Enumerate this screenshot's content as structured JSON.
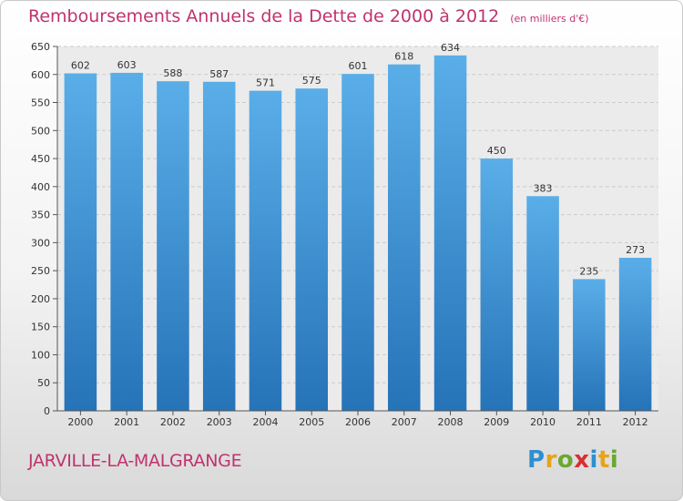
{
  "title": "Remboursements Annuels de la Dette de 2000 à 2012",
  "unit_note": "(en milliers d'€)",
  "city": "JARVILLE-LA-MALGRANGE",
  "logo": {
    "letters": [
      "P",
      "r",
      "o",
      "x",
      "i",
      "t",
      "i"
    ],
    "colors": [
      "#2e8fd0",
      "#e8a317",
      "#6aa832",
      "#d8302f",
      "#2e8fd0",
      "#e8a317",
      "#6aa832"
    ]
  },
  "colors": {
    "bar_top": "#5aaee8",
    "bar_bottom": "#2673b8",
    "accent": "#c0336e"
  },
  "chart_data": {
    "type": "bar",
    "categories": [
      "2000",
      "2001",
      "2002",
      "2003",
      "2004",
      "2005",
      "2006",
      "2007",
      "2008",
      "2009",
      "2010",
      "2011",
      "2012"
    ],
    "values": [
      602,
      603,
      588,
      587,
      571,
      575,
      601,
      618,
      634,
      450,
      383,
      235,
      273
    ],
    "ylim": [
      0,
      650
    ],
    "yticks": [
      0,
      50,
      100,
      150,
      200,
      250,
      300,
      350,
      400,
      450,
      500,
      550,
      600,
      650
    ],
    "grid": true,
    "xlabel": "",
    "ylabel": ""
  }
}
